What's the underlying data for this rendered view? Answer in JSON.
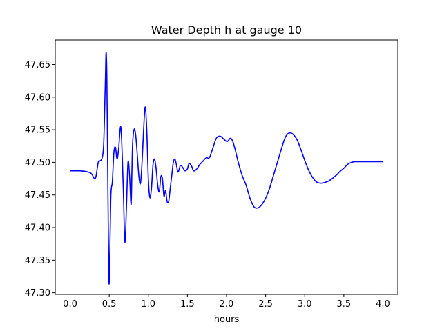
{
  "chart_data": {
    "type": "line",
    "title": "Water Depth h at gauge 10",
    "xlabel": "hours",
    "ylabel": "",
    "xlim": [
      -0.19,
      4.19
    ],
    "ylim": [
      47.2975,
      47.6875
    ],
    "xticks": [
      0.0,
      0.5,
      1.0,
      1.5,
      2.0,
      2.5,
      3.0,
      3.5,
      4.0
    ],
    "xtick_labels": [
      "0.0",
      "0.5",
      "1.0",
      "1.5",
      "2.0",
      "2.5",
      "3.0",
      "3.5",
      "4.0"
    ],
    "yticks": [
      47.3,
      47.35,
      47.4,
      47.45,
      47.5,
      47.55,
      47.6,
      47.65
    ],
    "ytick_labels": [
      "47.30",
      "47.35",
      "47.40",
      "47.45",
      "47.50",
      "47.55",
      "47.60",
      "47.65"
    ],
    "grid": false,
    "series": [
      {
        "color": "#0000ff",
        "x": [
          0.0,
          0.1,
          0.2,
          0.27,
          0.31,
          0.33,
          0.36,
          0.38,
          0.41,
          0.43,
          0.45,
          0.46,
          0.47,
          0.48,
          0.49,
          0.5,
          0.52,
          0.54,
          0.56,
          0.58,
          0.6,
          0.62,
          0.65,
          0.68,
          0.7,
          0.72,
          0.74,
          0.76,
          0.78,
          0.79,
          0.8,
          0.82,
          0.84,
          0.86,
          0.88,
          0.9,
          0.92,
          0.94,
          0.96,
          0.98,
          1.0,
          1.02,
          1.04,
          1.06,
          1.08,
          1.1,
          1.12,
          1.14,
          1.16,
          1.18,
          1.2,
          1.22,
          1.24,
          1.26,
          1.28,
          1.3,
          1.32,
          1.34,
          1.36,
          1.38,
          1.41,
          1.44,
          1.47,
          1.5,
          1.52,
          1.55,
          1.58,
          1.62,
          1.66,
          1.7,
          1.74,
          1.78,
          1.82,
          1.87,
          1.92,
          1.97,
          2.01,
          2.05,
          2.08,
          2.11,
          2.15,
          2.2,
          2.25,
          2.3,
          2.35,
          2.4,
          2.45,
          2.5,
          2.55,
          2.6,
          2.65,
          2.7,
          2.75,
          2.8,
          2.85,
          2.9,
          2.95,
          3.0,
          3.05,
          3.1,
          3.15,
          3.2,
          3.25,
          3.3,
          3.35,
          3.4,
          3.45,
          3.5,
          3.55,
          3.6,
          3.65,
          3.7,
          3.75,
          3.8,
          3.85,
          3.9,
          3.95,
          4.0
        ],
        "y": [
          47.487,
          47.487,
          47.486,
          47.483,
          47.475,
          47.478,
          47.5,
          47.502,
          47.507,
          47.53,
          47.62,
          47.668,
          47.63,
          47.5,
          47.38,
          47.315,
          47.445,
          47.47,
          47.515,
          47.523,
          47.505,
          47.52,
          47.553,
          47.46,
          47.378,
          47.43,
          47.5,
          47.48,
          47.435,
          47.485,
          47.53,
          47.551,
          47.54,
          47.51,
          47.478,
          47.468,
          47.5,
          47.55,
          47.585,
          47.55,
          47.475,
          47.446,
          47.46,
          47.496,
          47.505,
          47.49,
          47.465,
          47.455,
          47.478,
          47.475,
          47.448,
          47.457,
          47.44,
          47.44,
          47.46,
          47.48,
          47.5,
          47.505,
          47.496,
          47.485,
          47.495,
          47.492,
          47.487,
          47.49,
          47.498,
          47.495,
          47.487,
          47.49,
          47.497,
          47.502,
          47.507,
          47.507,
          47.52,
          47.537,
          47.54,
          47.535,
          47.532,
          47.537,
          47.532,
          47.52,
          47.5,
          47.48,
          47.465,
          47.445,
          47.432,
          47.43,
          47.435,
          47.445,
          47.46,
          47.48,
          47.5,
          47.52,
          47.538,
          47.545,
          47.543,
          47.535,
          47.52,
          47.503,
          47.488,
          47.477,
          47.47,
          47.468,
          47.469,
          47.471,
          47.475,
          47.48,
          47.486,
          47.491,
          47.497,
          47.5,
          47.501,
          47.501,
          47.501,
          47.501,
          47.501,
          47.501,
          47.501,
          47.501
        ]
      }
    ]
  }
}
